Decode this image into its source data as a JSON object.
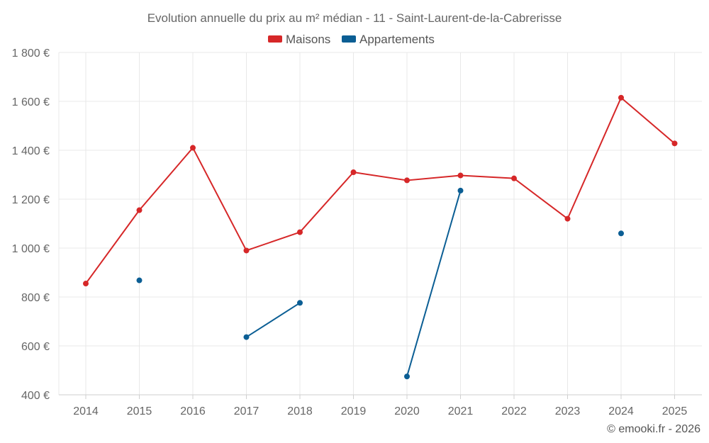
{
  "chart_data": {
    "type": "line",
    "title": "Evolution annuelle du prix au m² médian - 11 - Saint-Laurent-de-la-Cabrerisse",
    "categories": [
      "2014",
      "2015",
      "2016",
      "2017",
      "2018",
      "2019",
      "2020",
      "2021",
      "2022",
      "2023",
      "2024",
      "2025"
    ],
    "ylim": [
      400,
      1800
    ],
    "yticks": [
      400,
      600,
      800,
      1000,
      1200,
      1400,
      1600,
      1800
    ],
    "ytick_labels": [
      "400 €",
      "600 €",
      "800 €",
      "1 000 €",
      "1 200 €",
      "1 400 €",
      "1 600 €",
      "1 800 €"
    ],
    "grid": true,
    "legend_position": "top-center",
    "series": [
      {
        "name": "Maisons",
        "color": "#d62728",
        "values": [
          855,
          1155,
          1410,
          990,
          1065,
          1310,
          1277,
          1297,
          1285,
          1120,
          1615,
          1428
        ]
      },
      {
        "name": "Appartements",
        "color": "#0b5e94",
        "values": [
          null,
          868,
          null,
          636,
          776,
          null,
          475,
          1235,
          null,
          null,
          1060,
          null
        ]
      }
    ]
  },
  "credit": "© emooki.fr - 2026"
}
